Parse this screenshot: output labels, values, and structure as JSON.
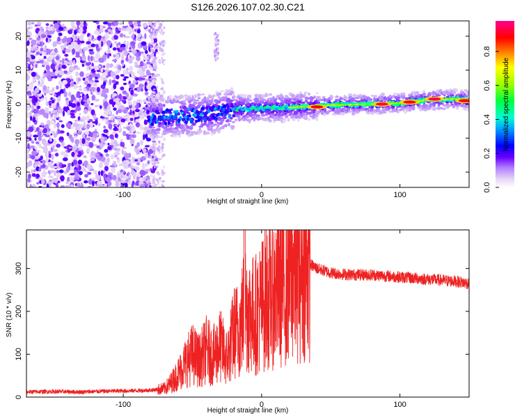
{
  "chart_data": [
    {
      "type": "heatmap",
      "title": "S126.2026.107.02.30.C21",
      "xlabel": "Height of straight line (km)",
      "ylabel": "Frequency (Hz)",
      "xlim": [
        -170,
        150
      ],
      "ylim": [
        -24.5,
        24.5
      ],
      "xticks": [
        -100,
        0,
        100
      ],
      "yticks": [
        -20,
        -10,
        0,
        10,
        20
      ],
      "colorbar": {
        "label": "Normalized spectral amplitude",
        "ticks": [
          "0.0",
          "0.2",
          "0.4",
          "0.6",
          "0.8"
        ],
        "tick_values": [
          0.0,
          0.2,
          0.4,
          0.6,
          0.8
        ],
        "range": [
          0,
          0.98
        ],
        "colors": [
          "#ffffff",
          "#e9d8f4",
          "#a070e8",
          "#6a00ff",
          "#0000ff",
          "#00c8ff",
          "#00ff80",
          "#80ff00",
          "#ffff00",
          "#ff8000",
          "#ff0000",
          "#ff00a0"
        ]
      },
      "ridge": {
        "description_points": [
          {
            "x": -80,
            "y": -4
          },
          {
            "x": -60,
            "y": -3.5
          },
          {
            "x": -40,
            "y": -3
          },
          {
            "x": -20,
            "y": -1.5
          },
          {
            "x": 0,
            "y": -1.2
          },
          {
            "x": 20,
            "y": -1
          },
          {
            "x": 40,
            "y": -0.5
          },
          {
            "x": 60,
            "y": -0.2
          },
          {
            "x": 80,
            "y": 0
          },
          {
            "x": 100,
            "y": 0.3
          },
          {
            "x": 120,
            "y": 1.2
          },
          {
            "x": 140,
            "y": 1.5
          },
          {
            "x": 150,
            "y": 1.2
          }
        ],
        "peak_amplitude_regions": [
          {
            "x": 40,
            "y": -0.8,
            "amp": 0.9
          },
          {
            "x": 87,
            "y": 0,
            "amp": 0.95
          },
          {
            "x": 107,
            "y": 0.6,
            "amp": 0.9
          },
          {
            "x": 125,
            "y": 1.5,
            "amp": 0.95
          },
          {
            "x": 147,
            "y": 1.0,
            "amp": 0.9
          }
        ],
        "noise_floor_cutoff_x": -82
      }
    },
    {
      "type": "line",
      "xlabel": "Height of straight line (km)",
      "ylabel": "SNR (10 * v/v)",
      "xlim": [
        -170,
        150
      ],
      "ylim": [
        0,
        390
      ],
      "xticks": [
        -100,
        0,
        100
      ],
      "yticks": [
        0,
        100,
        200,
        300
      ],
      "series": [
        {
          "name": "SNR",
          "color": "#ee2222",
          "x": [
            -170,
            -150,
            -130,
            -110,
            -90,
            -80,
            -70,
            -65,
            -60,
            -55,
            -50,
            -45,
            -40,
            -35,
            -30,
            -25,
            -20,
            -15,
            -12,
            -10,
            -5,
            0,
            5,
            10,
            15,
            20,
            25,
            30,
            35,
            40,
            50,
            60,
            80,
            100,
            120,
            140,
            150
          ],
          "y": [
            12,
            13,
            12,
            14,
            15,
            16,
            20,
            35,
            55,
            80,
            100,
            85,
            110,
            95,
            120,
            90,
            150,
            165,
            220,
            200,
            190,
            215,
            240,
            250,
            260,
            290,
            300,
            315,
            310,
            300,
            290,
            286,
            285,
            280,
            275,
            270,
            265
          ]
        }
      ]
    }
  ]
}
